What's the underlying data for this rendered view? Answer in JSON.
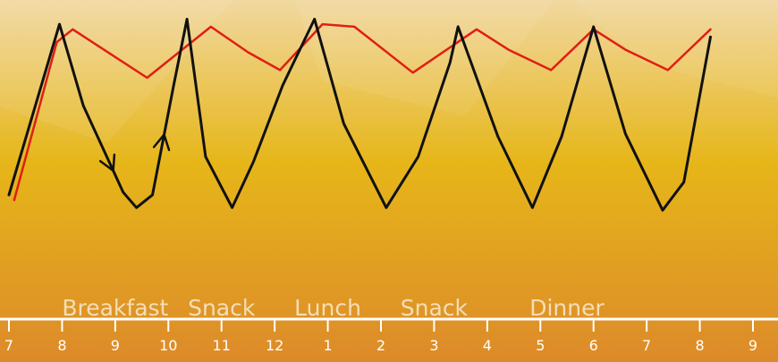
{
  "chart_data": {
    "type": "line",
    "x_ticks": [
      "7",
      "8",
      "9",
      "10",
      "11",
      "12",
      "1",
      "2",
      "3",
      "4",
      "5",
      "6",
      "7",
      "8",
      "9"
    ],
    "meal_labels": [
      {
        "text": "Breakfast",
        "x": 9.0
      },
      {
        "text": "Snack",
        "x": 11.0
      },
      {
        "text": "Lunch",
        "x": 13.0
      },
      {
        "text": "Snack",
        "x": 15.0
      },
      {
        "text": "Dinner",
        "x": 17.5
      }
    ],
    "xlim": [
      7,
      21
    ],
    "ylim": [
      0,
      100
    ],
    "series": [
      {
        "color": "#e01e14",
        "points": [
          [
            7.1,
            25
          ],
          [
            7.9,
            87
          ],
          [
            8.2,
            92
          ],
          [
            9.6,
            73
          ],
          [
            10.8,
            93
          ],
          [
            11.5,
            83
          ],
          [
            12.1,
            76
          ],
          [
            12.9,
            94
          ],
          [
            13.5,
            93
          ],
          [
            14.6,
            75
          ],
          [
            15.8,
            92
          ],
          [
            16.4,
            84
          ],
          [
            17.2,
            76
          ],
          [
            18.0,
            92
          ],
          [
            18.6,
            84
          ],
          [
            19.4,
            76
          ],
          [
            20.2,
            92
          ]
        ]
      },
      {
        "color": "#111111",
        "points": [
          [
            7.0,
            27
          ],
          [
            7.95,
            94
          ],
          [
            8.4,
            62
          ],
          [
            9.15,
            28
          ],
          [
            9.4,
            22
          ],
          [
            9.7,
            27
          ],
          [
            10.1,
            70
          ],
          [
            10.35,
            96
          ],
          [
            10.7,
            42
          ],
          [
            11.2,
            22
          ],
          [
            11.6,
            40
          ],
          [
            12.15,
            70
          ],
          [
            12.75,
            96
          ],
          [
            13.3,
            55
          ],
          [
            14.1,
            22
          ],
          [
            14.7,
            42
          ],
          [
            15.3,
            79
          ],
          [
            15.45,
            93
          ],
          [
            16.2,
            50
          ],
          [
            16.85,
            22
          ],
          [
            17.4,
            50
          ],
          [
            18.0,
            93
          ],
          [
            18.6,
            51
          ],
          [
            19.3,
            21
          ],
          [
            19.7,
            32
          ],
          [
            20.2,
            89
          ]
        ]
      }
    ]
  },
  "colors": {
    "background_top": "#f1d8a0",
    "background_mid": "#e6b619",
    "background_bottom": "#dd8a2a",
    "axis": "#ffffff"
  }
}
